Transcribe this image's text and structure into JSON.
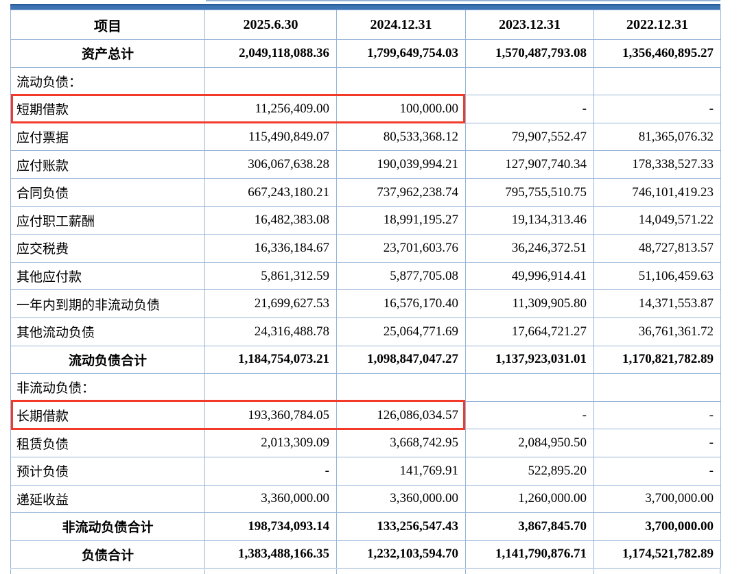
{
  "colors": {
    "table_border": "#95b3d7",
    "top_bar": "#3f74b4",
    "top_bar_edge": "#2a5d9b",
    "highlight_box": "#f23a2a",
    "text": "#000000"
  },
  "table": {
    "columns": [
      "项目",
      "2025.6.30",
      "2024.12.31",
      "2023.12.31",
      "2022.12.31"
    ],
    "rows": [
      {
        "label": "资产总计",
        "values": [
          "2,049,118,088.36",
          "1,799,649,754.03",
          "1,570,487,793.08",
          "1,356,460,895.27"
        ],
        "type": "total",
        "highlight": false
      },
      {
        "label": "流动负债：",
        "values": [
          "",
          "",
          "",
          ""
        ],
        "type": "section",
        "highlight": false
      },
      {
        "label": "短期借款",
        "values": [
          "11,256,409.00",
          "100,000.00",
          "-",
          "-"
        ],
        "type": "item",
        "highlight": true
      },
      {
        "label": "应付票据",
        "values": [
          "115,490,849.07",
          "80,533,368.12",
          "79,907,552.47",
          "81,365,076.32"
        ],
        "type": "item",
        "highlight": false
      },
      {
        "label": "应付账款",
        "values": [
          "306,067,638.28",
          "190,039,994.21",
          "127,907,740.34",
          "178,338,527.33"
        ],
        "type": "item",
        "highlight": false
      },
      {
        "label": "合同负债",
        "values": [
          "667,243,180.21",
          "737,962,238.74",
          "795,755,510.75",
          "746,101,419.23"
        ],
        "type": "item",
        "highlight": false
      },
      {
        "label": "应付职工薪酬",
        "values": [
          "16,482,383.08",
          "18,991,195.27",
          "19,134,313.46",
          "14,049,571.22"
        ],
        "type": "item",
        "highlight": false
      },
      {
        "label": "应交税费",
        "values": [
          "16,336,184.67",
          "23,701,603.76",
          "36,246,372.51",
          "48,727,813.57"
        ],
        "type": "item",
        "highlight": false
      },
      {
        "label": "其他应付款",
        "values": [
          "5,861,312.59",
          "5,877,705.08",
          "49,996,914.41",
          "51,106,459.63"
        ],
        "type": "item",
        "highlight": false
      },
      {
        "label": "一年内到期的非流动负债",
        "values": [
          "21,699,627.53",
          "16,576,170.40",
          "11,309,905.80",
          "14,371,553.87"
        ],
        "type": "item",
        "highlight": false
      },
      {
        "label": "其他流动负债",
        "values": [
          "24,316,488.78",
          "25,064,771.69",
          "17,664,721.27",
          "36,761,361.72"
        ],
        "type": "item",
        "highlight": false
      },
      {
        "label": "流动负债合计",
        "values": [
          "1,184,754,073.21",
          "1,098,847,047.27",
          "1,137,923,031.01",
          "1,170,821,782.89"
        ],
        "type": "total",
        "highlight": false
      },
      {
        "label": "非流动负债：",
        "values": [
          "",
          "",
          "",
          ""
        ],
        "type": "section",
        "highlight": false
      },
      {
        "label": "长期借款",
        "values": [
          "193,360,784.05",
          "126,086,034.57",
          "-",
          "-"
        ],
        "type": "item",
        "highlight": true
      },
      {
        "label": "租赁负债",
        "values": [
          "2,013,309.09",
          "3,668,742.95",
          "2,084,950.50",
          "-"
        ],
        "type": "item",
        "highlight": false
      },
      {
        "label": "预计负债",
        "values": [
          "-",
          "141,769.91",
          "522,895.20",
          "-"
        ],
        "type": "item",
        "highlight": false
      },
      {
        "label": "递延收益",
        "values": [
          "3,360,000.00",
          "3,360,000.00",
          "1,260,000.00",
          "3,700,000.00"
        ],
        "type": "item",
        "highlight": false
      },
      {
        "label": "非流动负债合计",
        "values": [
          "198,734,093.14",
          "133,256,547.43",
          "3,867,845.70",
          "3,700,000.00"
        ],
        "type": "total",
        "highlight": false
      },
      {
        "label": "负债合计",
        "values": [
          "1,383,488,166.35",
          "1,232,103,594.70",
          "1,141,790,876.71",
          "1,174,521,782.89"
        ],
        "type": "total",
        "highlight": false
      }
    ]
  }
}
